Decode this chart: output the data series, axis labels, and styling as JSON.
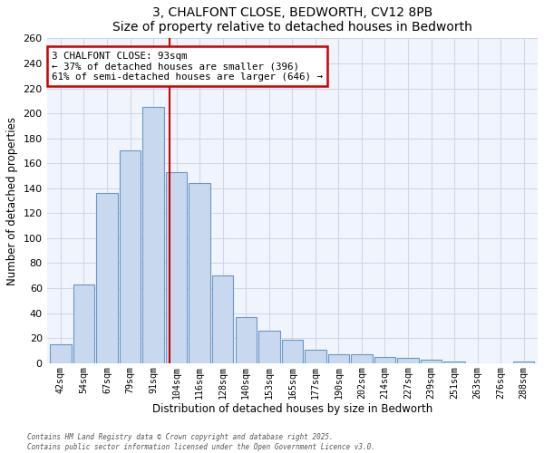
{
  "title": "3, CHALFONT CLOSE, BEDWORTH, CV12 8PB",
  "subtitle": "Size of property relative to detached houses in Bedworth",
  "xlabel": "Distribution of detached houses by size in Bedworth",
  "ylabel": "Number of detached properties",
  "bar_labels": [
    "42sqm",
    "54sqm",
    "67sqm",
    "79sqm",
    "91sqm",
    "104sqm",
    "116sqm",
    "128sqm",
    "140sqm",
    "153sqm",
    "165sqm",
    "177sqm",
    "190sqm",
    "202sqm",
    "214sqm",
    "227sqm",
    "239sqm",
    "251sqm",
    "263sqm",
    "276sqm",
    "288sqm"
  ],
  "bar_values": [
    15,
    63,
    136,
    170,
    205,
    153,
    144,
    70,
    37,
    26,
    19,
    11,
    7,
    7,
    5,
    4,
    3,
    1,
    0,
    0,
    1
  ],
  "bar_color": "#c8d8ee",
  "bar_edge_color": "#6898c8",
  "vline_x": 4.72,
  "vline_color": "#cc0000",
  "annotation_title": "3 CHALFONT CLOSE: 93sqm",
  "annotation_line1": "← 37% of detached houses are smaller (396)",
  "annotation_line2": "61% of semi-detached houses are larger (646) →",
  "annotation_box_color": "#ffffff",
  "annotation_box_edge": "#cc0000",
  "ylim": [
    0,
    260
  ],
  "yticks": [
    0,
    20,
    40,
    60,
    80,
    100,
    120,
    140,
    160,
    180,
    200,
    220,
    240,
    260
  ],
  "footer_line1": "Contains HM Land Registry data © Crown copyright and database right 2025.",
  "footer_line2": "Contains public sector information licensed under the Open Government Licence v3.0.",
  "background_color": "#ffffff",
  "plot_bg_color": "#f0f4fc",
  "grid_color": "#d0d8e8"
}
